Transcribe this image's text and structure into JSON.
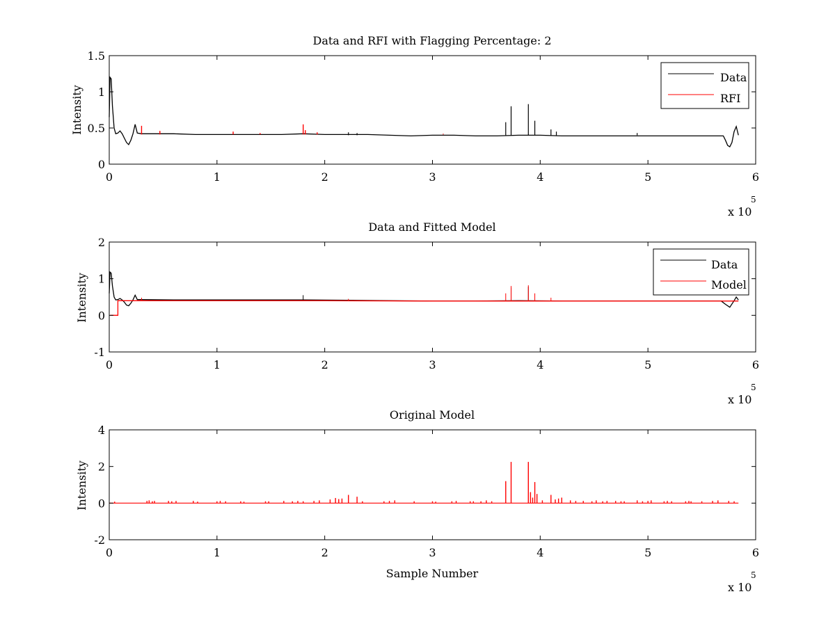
{
  "figure": {
    "background": "#ffffff"
  },
  "colors": {
    "data": "#000000",
    "rfi": "#ff0000",
    "model": "#ff0000",
    "axes": "#000000"
  },
  "chart_data": [
    {
      "type": "line",
      "title": "Data and RFI with Flagging Percentage: 2",
      "xlabel": "",
      "ylabel": "Intensity",
      "xlim": [
        0,
        600000
      ],
      "ylim": [
        0,
        1.5
      ],
      "xticks": [
        0,
        100000,
        200000,
        300000,
        400000,
        500000,
        600000
      ],
      "xtick_labels": [
        "0",
        "1",
        "2",
        "3",
        "4",
        "5",
        "6"
      ],
      "yticks": [
        0,
        0.5,
        1,
        1.5
      ],
      "ytick_labels": [
        "0",
        "0.5",
        "1",
        "1.5"
      ],
      "x_multiplier": {
        "base": "x 10",
        "exponent": "5"
      },
      "grid": false,
      "legend": {
        "position": "top-right",
        "entries": [
          "Data",
          "RFI"
        ]
      },
      "series": [
        {
          "name": "Data",
          "color": "#000000",
          "style": "line",
          "points": [
            [
              0,
              0.65
            ],
            [
              800,
              1.2
            ],
            [
              1800,
              1.18
            ],
            [
              3000,
              0.8
            ],
            [
              4500,
              0.5
            ],
            [
              6000,
              0.42
            ],
            [
              8000,
              0.43
            ],
            [
              10000,
              0.46
            ],
            [
              12000,
              0.42
            ],
            [
              14000,
              0.36
            ],
            [
              16000,
              0.3
            ],
            [
              18000,
              0.27
            ],
            [
              20000,
              0.33
            ],
            [
              22000,
              0.42
            ],
            [
              24000,
              0.55
            ],
            [
              26000,
              0.43
            ],
            [
              30000,
              0.42
            ],
            [
              40000,
              0.42
            ],
            [
              60000,
              0.42
            ],
            [
              80000,
              0.41
            ],
            [
              100000,
              0.41
            ],
            [
              120000,
              0.41
            ],
            [
              140000,
              0.41
            ],
            [
              160000,
              0.41
            ],
            [
              180000,
              0.42
            ],
            [
              200000,
              0.41
            ],
            [
              220000,
              0.41
            ],
            [
              240000,
              0.41
            ],
            [
              260000,
              0.4
            ],
            [
              280000,
              0.39
            ],
            [
              300000,
              0.4
            ],
            [
              320000,
              0.4
            ],
            [
              340000,
              0.39
            ],
            [
              360000,
              0.39
            ],
            [
              380000,
              0.4
            ],
            [
              400000,
              0.4
            ],
            [
              420000,
              0.39
            ],
            [
              440000,
              0.39
            ],
            [
              460000,
              0.39
            ],
            [
              480000,
              0.39
            ],
            [
              500000,
              0.39
            ],
            [
              520000,
              0.39
            ],
            [
              540000,
              0.39
            ],
            [
              560000,
              0.39
            ],
            [
              570000,
              0.39
            ],
            [
              572000,
              0.33
            ],
            [
              574000,
              0.26
            ],
            [
              576000,
              0.24
            ],
            [
              578000,
              0.3
            ],
            [
              580000,
              0.45
            ],
            [
              582000,
              0.52
            ],
            [
              584000,
              0.4
            ]
          ]
        },
        {
          "name": "RFI",
          "color": "#ff0000",
          "style": "spikes",
          "baseline": 0.41,
          "spikes": [
            [
              30000,
              0.53
            ],
            [
              47000,
              0.46
            ],
            [
              115000,
              0.45
            ],
            [
              140000,
              0.43
            ],
            [
              180000,
              0.55
            ],
            [
              182000,
              0.47
            ],
            [
              193000,
              0.44
            ],
            [
              310000,
              0.42
            ]
          ]
        }
      ],
      "data_spikes": [
        [
          368000,
          0.58
        ],
        [
          373000,
          0.8
        ],
        [
          389000,
          0.83
        ],
        [
          395000,
          0.6
        ],
        [
          410000,
          0.48
        ],
        [
          415000,
          0.45
        ],
        [
          222000,
          0.44
        ],
        [
          230000,
          0.43
        ],
        [
          490000,
          0.43
        ]
      ]
    },
    {
      "type": "line",
      "title": "Data and Fitted Model",
      "xlabel": "",
      "ylabel": "Intensity",
      "xlim": [
        0,
        600000
      ],
      "ylim": [
        -1,
        2
      ],
      "xticks": [
        0,
        100000,
        200000,
        300000,
        400000,
        500000,
        600000
      ],
      "xtick_labels": [
        "0",
        "1",
        "2",
        "3",
        "4",
        "5",
        "6"
      ],
      "yticks": [
        -1,
        0,
        1,
        2
      ],
      "ytick_labels": [
        "-1",
        "0",
        "1",
        "2"
      ],
      "x_multiplier": {
        "base": "x 10",
        "exponent": "5"
      },
      "grid": false,
      "legend": {
        "position": "top-right",
        "entries": [
          "Data",
          "Model"
        ]
      },
      "series": [
        {
          "name": "Data",
          "color": "#000000",
          "style": "line",
          "points": [
            [
              0,
              0.6
            ],
            [
              800,
              1.18
            ],
            [
              1800,
              1.15
            ],
            [
              3000,
              0.8
            ],
            [
              4500,
              0.5
            ],
            [
              6000,
              0.42
            ],
            [
              8000,
              0.43
            ],
            [
              10000,
              0.46
            ],
            [
              12000,
              0.42
            ],
            [
              14000,
              0.36
            ],
            [
              16000,
              0.28
            ],
            [
              18000,
              0.26
            ],
            [
              20000,
              0.33
            ],
            [
              22000,
              0.42
            ],
            [
              24000,
              0.55
            ],
            [
              26000,
              0.43
            ],
            [
              30000,
              0.43
            ],
            [
              60000,
              0.42
            ],
            [
              100000,
              0.42
            ],
            [
              140000,
              0.42
            ],
            [
              180000,
              0.42
            ],
            [
              220000,
              0.41
            ],
            [
              260000,
              0.4
            ],
            [
              300000,
              0.39
            ],
            [
              340000,
              0.39
            ],
            [
              380000,
              0.4
            ],
            [
              420000,
              0.39
            ],
            [
              460000,
              0.39
            ],
            [
              500000,
              0.39
            ],
            [
              540000,
              0.39
            ],
            [
              568000,
              0.39
            ],
            [
              572000,
              0.3
            ],
            [
              576000,
              0.22
            ],
            [
              580000,
              0.4
            ],
            [
              582000,
              0.5
            ],
            [
              584000,
              0.42
            ]
          ],
          "spikes": [
            [
              180000,
              0.55
            ],
            [
              373000,
              0.75
            ],
            [
              389000,
              0.78
            ]
          ]
        },
        {
          "name": "Model",
          "color": "#ff0000",
          "style": "line",
          "points": [
            [
              1000,
              0
            ],
            [
              8000,
              0
            ],
            [
              8000,
              0.4
            ],
            [
              30000,
              0.4
            ],
            [
              100000,
              0.4
            ],
            [
              200000,
              0.4
            ],
            [
              300000,
              0.39
            ],
            [
              400000,
              0.39
            ],
            [
              500000,
              0.39
            ],
            [
              584000,
              0.39
            ]
          ],
          "spikes": [
            [
              368000,
              0.6
            ],
            [
              373000,
              0.8
            ],
            [
              389000,
              0.82
            ],
            [
              395000,
              0.6
            ],
            [
              410000,
              0.48
            ],
            [
              222000,
              0.45
            ],
            [
              30000,
              0.48
            ]
          ]
        }
      ]
    },
    {
      "type": "line",
      "title": "Original Model",
      "xlabel": "Sample Number",
      "ylabel": "Intensity",
      "xlim": [
        0,
        600000
      ],
      "ylim": [
        -2,
        4
      ],
      "xticks": [
        0,
        100000,
        200000,
        300000,
        400000,
        500000,
        600000
      ],
      "xtick_labels": [
        "0",
        "1",
        "2",
        "3",
        "4",
        "5",
        "6"
      ],
      "yticks": [
        -2,
        0,
        2,
        4
      ],
      "ytick_labels": [
        "-2",
        "0",
        "2",
        "4"
      ],
      "x_multiplier": {
        "base": "x 10",
        "exponent": "5"
      },
      "grid": false,
      "series": [
        {
          "color": "#ff0000",
          "style": "spikes",
          "baseline": 0,
          "line_range": [
            0,
            584000
          ],
          "spikes": [
            [
              5000,
              0.08
            ],
            [
              35000,
              0.12
            ],
            [
              37000,
              0.15
            ],
            [
              40000,
              0.1
            ],
            [
              42000,
              0.12
            ],
            [
              55000,
              0.12
            ],
            [
              58000,
              0.1
            ],
            [
              62000,
              0.12
            ],
            [
              78000,
              0.12
            ],
            [
              82000,
              0.08
            ],
            [
              100000,
              0.1
            ],
            [
              103000,
              0.12
            ],
            [
              108000,
              0.1
            ],
            [
              122000,
              0.1
            ],
            [
              125000,
              0.08
            ],
            [
              145000,
              0.1
            ],
            [
              148000,
              0.1
            ],
            [
              162000,
              0.12
            ],
            [
              170000,
              0.1
            ],
            [
              175000,
              0.12
            ],
            [
              180000,
              0.1
            ],
            [
              190000,
              0.12
            ],
            [
              195000,
              0.15
            ],
            [
              205000,
              0.2
            ],
            [
              210000,
              0.28
            ],
            [
              213000,
              0.22
            ],
            [
              216000,
              0.25
            ],
            [
              222000,
              0.45
            ],
            [
              230000,
              0.35
            ],
            [
              235000,
              0.1
            ],
            [
              255000,
              0.1
            ],
            [
              260000,
              0.12
            ],
            [
              265000,
              0.15
            ],
            [
              283000,
              0.1
            ],
            [
              300000,
              0.1
            ],
            [
              303000,
              0.08
            ],
            [
              318000,
              0.1
            ],
            [
              322000,
              0.12
            ],
            [
              335000,
              0.1
            ],
            [
              338000,
              0.1
            ],
            [
              345000,
              0.1
            ],
            [
              350000,
              0.15
            ],
            [
              355000,
              0.1
            ],
            [
              368000,
              1.2
            ],
            [
              373000,
              2.25
            ],
            [
              389000,
              2.25
            ],
            [
              391000,
              0.6
            ],
            [
              393000,
              0.3
            ],
            [
              395000,
              1.15
            ],
            [
              397000,
              0.5
            ],
            [
              402000,
              0.15
            ],
            [
              410000,
              0.45
            ],
            [
              414000,
              0.2
            ],
            [
              417000,
              0.25
            ],
            [
              420000,
              0.3
            ],
            [
              428000,
              0.15
            ],
            [
              433000,
              0.12
            ],
            [
              440000,
              0.12
            ],
            [
              448000,
              0.1
            ],
            [
              452000,
              0.15
            ],
            [
              458000,
              0.1
            ],
            [
              462000,
              0.12
            ],
            [
              470000,
              0.12
            ],
            [
              475000,
              0.1
            ],
            [
              478000,
              0.1
            ],
            [
              490000,
              0.15
            ],
            [
              495000,
              0.1
            ],
            [
              500000,
              0.12
            ],
            [
              503000,
              0.15
            ],
            [
              515000,
              0.1
            ],
            [
              518000,
              0.12
            ],
            [
              522000,
              0.1
            ],
            [
              535000,
              0.1
            ],
            [
              538000,
              0.12
            ],
            [
              540000,
              0.1
            ],
            [
              550000,
              0.1
            ],
            [
              560000,
              0.12
            ],
            [
              565000,
              0.15
            ],
            [
              575000,
              0.12
            ],
            [
              580000,
              0.1
            ]
          ]
        }
      ]
    }
  ]
}
